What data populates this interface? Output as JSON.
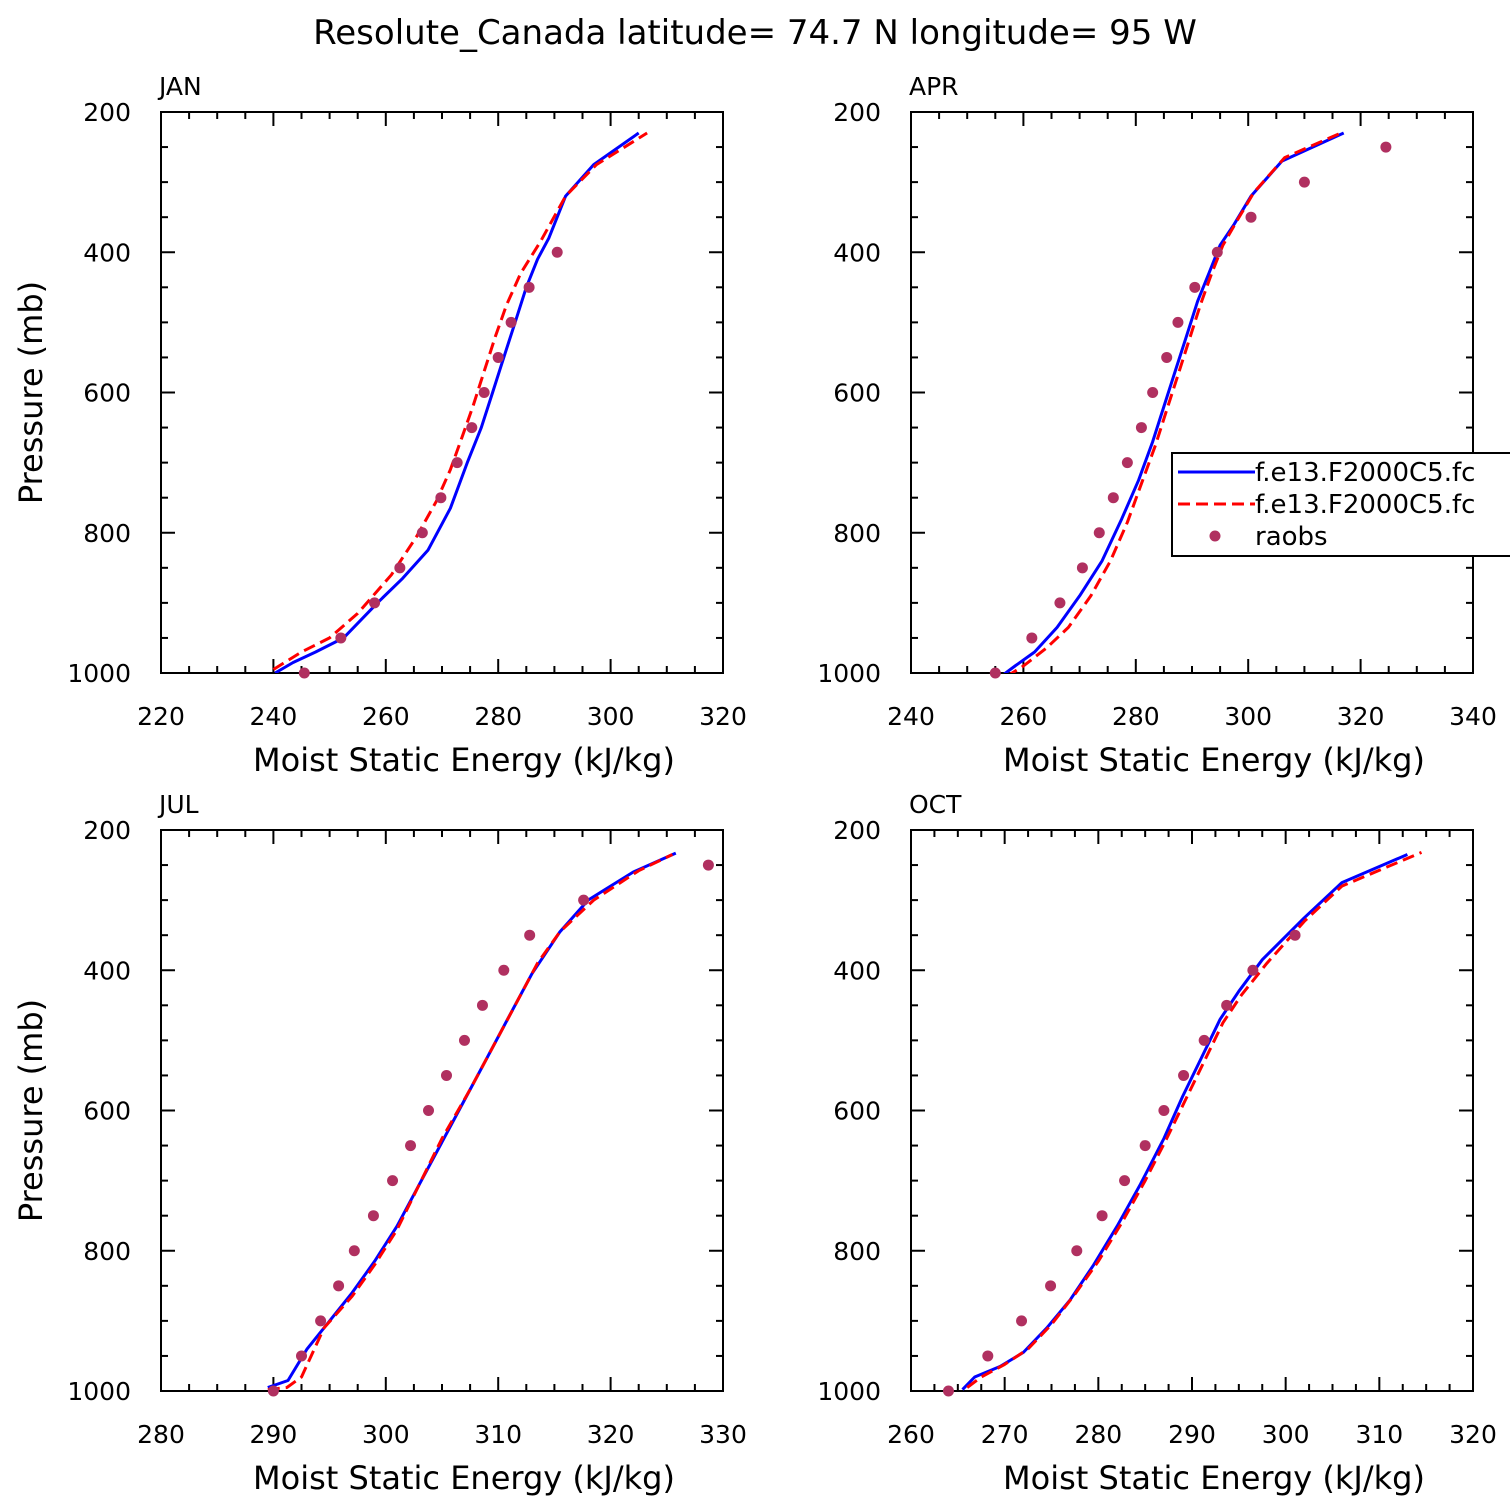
{
  "title": "Resolute_Canada  latitude= 74.7 N longitude= 95 W",
  "colors": {
    "model_a": "#0000ff",
    "model_b": "#ff0000",
    "raobs": "#b03060"
  },
  "legend": {
    "entries": [
      "f.e13.F2000C5.fc",
      "f.e13.F2000C5.fc",
      "raobs"
    ]
  },
  "chart_data": [
    {
      "type": "line",
      "panel": "JAN",
      "xlabel": "Moist Static Energy (kJ/kg)",
      "ylabel": "Pressure (mb)",
      "xlim": [
        220,
        320
      ],
      "ylim": [
        200,
        1000
      ],
      "xticks": [
        220,
        240,
        260,
        280,
        300,
        320
      ],
      "yticks": [
        200,
        400,
        600,
        800,
        1000
      ],
      "series": [
        {
          "name": "f.e13.F2000C5.fc",
          "style": "solid",
          "color": "#0000ff",
          "x": [
            240.3,
            243.5,
            247.5,
            252.5,
            258.5,
            263,
            267.5,
            271.5,
            274.5,
            277,
            279,
            281,
            283,
            285,
            287,
            289,
            292,
            297,
            305
          ],
          "y": [
            1000,
            985,
            970,
            950,
            900,
            865,
            825,
            765,
            700,
            650,
            600,
            550,
            500,
            450,
            410,
            380,
            320,
            275,
            230
          ]
        },
        {
          "name": "f.e13.F2000C5.fc",
          "style": "dashed",
          "color": "#ff0000",
          "x": [
            240,
            242,
            245,
            250,
            255,
            261,
            265.5,
            269,
            271.5,
            273.5,
            275.5,
            277.5,
            279.5,
            281.5,
            284,
            287.5,
            292,
            297.5,
            306.5
          ],
          "y": [
            995,
            985,
            970,
            950,
            915,
            860,
            805,
            755,
            710,
            665,
            620,
            570,
            520,
            475,
            430,
            385,
            320,
            275,
            230
          ]
        },
        {
          "name": "raobs",
          "style": "dots",
          "color": "#b03060",
          "x": [
            245.5,
            252,
            258,
            262.5,
            266.5,
            269.8,
            272.7,
            275.3,
            277.5,
            280,
            282.3,
            285.5,
            290.5
          ],
          "y": [
            1000,
            950,
            900,
            850,
            800,
            750,
            700,
            650,
            600,
            550,
            500,
            450,
            400
          ]
        }
      ]
    },
    {
      "type": "line",
      "panel": "APR",
      "xlabel": "Moist Static Energy (kJ/kg)",
      "ylabel": "",
      "xlim": [
        240,
        340
      ],
      "ylim": [
        200,
        1000
      ],
      "xticks": [
        240,
        260,
        280,
        300,
        320,
        340
      ],
      "yticks": [
        200,
        400,
        600,
        800,
        1000
      ],
      "legend": true,
      "series": [
        {
          "name": "f.e13.F2000C5.fc",
          "style": "solid",
          "color": "#0000ff",
          "x": [
            256,
            258.5,
            262,
            266,
            270,
            274,
            277.5,
            280.5,
            283,
            285,
            287,
            289,
            291,
            293,
            295,
            297.5,
            300.5,
            306,
            317
          ],
          "y": [
            1005,
            990,
            970,
            935,
            890,
            840,
            780,
            725,
            670,
            620,
            570,
            520,
            470,
            430,
            390,
            360,
            320,
            270,
            230
          ]
        },
        {
          "name": "f.e13.F2000C5.fc",
          "style": "dashed",
          "color": "#ff0000",
          "x": [
            257,
            260,
            264,
            268,
            272,
            275.5,
            278.5,
            281,
            283.5,
            285.5,
            287.5,
            289.5,
            291.5,
            293.5,
            295.5,
            298,
            301,
            306.5,
            316.5
          ],
          "y": [
            1005,
            990,
            965,
            935,
            890,
            840,
            785,
            730,
            675,
            625,
            575,
            525,
            475,
            430,
            390,
            355,
            315,
            265,
            230
          ]
        },
        {
          "name": "raobs",
          "style": "dots",
          "color": "#b03060",
          "x": [
            255,
            261.5,
            266.5,
            270.5,
            273.5,
            276,
            278.5,
            281,
            283,
            285.5,
            287.5,
            290.5,
            294.5,
            300.5,
            310,
            324.5
          ],
          "y": [
            1000,
            950,
            900,
            850,
            800,
            750,
            700,
            650,
            600,
            550,
            500,
            450,
            400,
            350,
            300,
            250
          ]
        }
      ]
    },
    {
      "type": "line",
      "panel": "JUL",
      "xlabel": "Moist Static Energy (kJ/kg)",
      "ylabel": "Pressure (mb)",
      "xlim": [
        280,
        330
      ],
      "ylim": [
        200,
        1000
      ],
      "xticks": [
        280,
        290,
        300,
        310,
        320,
        330
      ],
      "yticks": [
        200,
        400,
        600,
        800,
        1000
      ],
      "series": [
        {
          "name": "f.e13.F2000C5.fc",
          "style": "solid",
          "color": "#0000ff",
          "x": [
            289.5,
            291.3,
            293,
            295,
            297,
            299,
            301,
            303,
            305,
            307,
            309,
            311,
            313,
            315.5,
            318,
            322,
            325.8
          ],
          "y": [
            995,
            985,
            940,
            900,
            860,
            815,
            765,
            705,
            645,
            585,
            525,
            465,
            405,
            345,
            300,
            260,
            233
          ]
        },
        {
          "name": "f.e13.F2000C5.fc",
          "style": "dashed",
          "color": "#ff0000",
          "x": [
            289.5,
            291.2,
            292.5,
            294.5,
            297,
            299,
            301,
            303,
            305,
            307.5,
            309.5,
            311.5,
            313.5,
            315.5,
            318.5,
            322.5,
            325.5
          ],
          "y": [
            998,
            995,
            980,
            910,
            865,
            820,
            770,
            705,
            640,
            570,
            510,
            450,
            390,
            345,
            300,
            258,
            235
          ]
        },
        {
          "name": "raobs",
          "style": "dots",
          "color": "#b03060",
          "x": [
            290,
            292.5,
            294.2,
            295.8,
            297.2,
            298.9,
            300.6,
            302.2,
            303.8,
            305.4,
            307,
            308.6,
            310.5,
            312.8,
            317.6,
            328.7
          ],
          "y": [
            1000,
            950,
            900,
            850,
            800,
            750,
            700,
            650,
            600,
            550,
            500,
            450,
            400,
            350,
            300,
            250
          ]
        }
      ]
    },
    {
      "type": "line",
      "panel": "OCT",
      "xlabel": "Moist Static Energy (kJ/kg)",
      "ylabel": "",
      "xlim": [
        260,
        320
      ],
      "ylim": [
        200,
        1000
      ],
      "xticks": [
        260,
        270,
        280,
        290,
        300,
        310,
        320
      ],
      "yticks": [
        200,
        400,
        600,
        800,
        1000
      ],
      "series": [
        {
          "name": "f.e13.F2000C5.fc",
          "style": "solid",
          "color": "#0000ff",
          "x": [
            265.5,
            266.8,
            269.5,
            272,
            274.5,
            277,
            279.5,
            282,
            284.5,
            287,
            289,
            291,
            293,
            295,
            297.5,
            302,
            306,
            313
          ],
          "y": [
            998,
            980,
            965,
            945,
            910,
            870,
            820,
            765,
            705,
            640,
            580,
            525,
            470,
            430,
            385,
            325,
            275,
            235
          ]
        },
        {
          "name": "f.e13.F2000C5.fc",
          "style": "dashed",
          "color": "#ff0000",
          "x": [
            266,
            267.5,
            270,
            272.5,
            275,
            277.5,
            280,
            282.5,
            285,
            287.3,
            289.3,
            291.3,
            293.3,
            295.3,
            298,
            302,
            306,
            314.5
          ],
          "y": [
            995,
            980,
            962,
            940,
            905,
            862,
            815,
            760,
            700,
            640,
            585,
            530,
            475,
            435,
            390,
            330,
            280,
            232
          ]
        },
        {
          "name": "raobs",
          "style": "dots",
          "color": "#b03060",
          "x": [
            264,
            268.2,
            271.8,
            274.9,
            277.7,
            280.4,
            282.8,
            285,
            287,
            289.1,
            291.3,
            293.7,
            296.5,
            301
          ],
          "y": [
            1000,
            950,
            900,
            850,
            800,
            750,
            700,
            650,
            600,
            550,
            500,
            450,
            400,
            350
          ]
        }
      ]
    }
  ]
}
